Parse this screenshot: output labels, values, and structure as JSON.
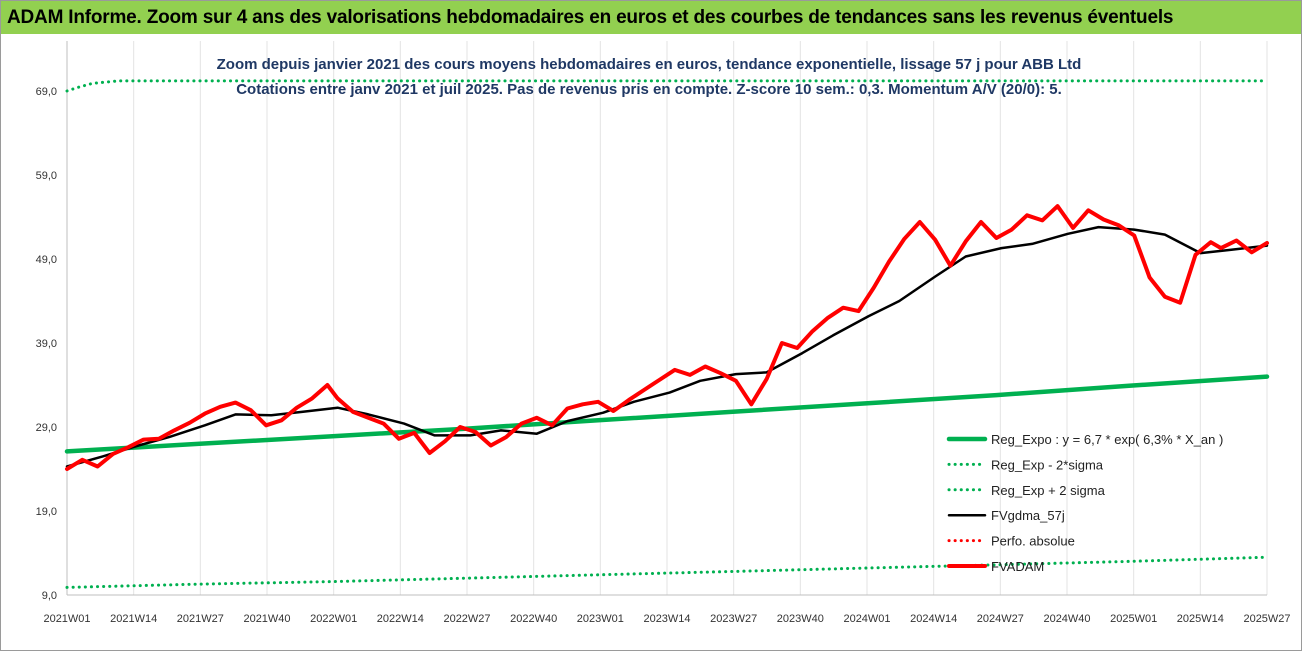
{
  "header": {
    "title": "ADAM Informe. Zoom sur 4 ans des valorisations hebdomadaires en euros et des courbes de tendances sans les revenus éventuels"
  },
  "chart_data": {
    "type": "line",
    "title": "Zoom depuis janvier 2021 des cours moyens hebdomadaires en euros, tendance exponentielle, lissage 57 j pour ABB Ltd",
    "subtitle": "Cotations entre janv 2021 et juil 2025. Pas de revenus pris en compte. Z-score 10 sem.: 0,3. Momentum A/V (20/0): 5.",
    "y_ticks": [
      "9,0",
      "19,0",
      "29,0",
      "39,0",
      "49,0",
      "59,0",
      "69,0"
    ],
    "y_tick_values": [
      9,
      19,
      29,
      39,
      49,
      59,
      69
    ],
    "ylim": [
      9,
      72
    ],
    "x_ticks": [
      "2021W01",
      "2021W14",
      "2021W27",
      "2021W40",
      "2022W01",
      "2022W14",
      "2022W27",
      "2022W40",
      "2023W01",
      "2023W14",
      "2023W27",
      "2023W40",
      "2024W01",
      "2024W14",
      "2024W27",
      "2024W40",
      "2025W01",
      "2025W14",
      "2025W27"
    ],
    "grid": "vertical",
    "legend_position": "bottom-right",
    "colors": {
      "reg": "#00b050",
      "band": "#00b050",
      "ma": "#000000",
      "perf": "#ff0000",
      "price": "#ff0000"
    },
    "series": [
      {
        "name": "Reg_Expo : y = 6,7 * exp( 6,3% *  X_an )",
        "style": "solid-thick",
        "color": "#00b050",
        "x": [
          0,
          26,
          52,
          78,
          104,
          130,
          156,
          182,
          208,
          235
        ],
        "values": [
          26.1,
          27.0,
          27.9,
          28.8,
          29.8,
          30.8,
          31.8,
          32.8,
          33.9,
          35.0
        ]
      },
      {
        "name": "Reg_Exp - 2*sigma",
        "style": "dotted",
        "color": "#00b050",
        "x": [
          0,
          26,
          52,
          78,
          104,
          130,
          156,
          182,
          208,
          235
        ],
        "values": [
          9.9,
          10.3,
          10.6,
          11.0,
          11.4,
          11.8,
          12.2,
          12.6,
          13.0,
          13.5
        ]
      },
      {
        "name": "Reg_Exp + 2 sigma",
        "style": "dotted",
        "color": "#00b050",
        "x": [
          0,
          2,
          5,
          10,
          235
        ],
        "values": [
          69.0,
          69.4,
          69.9,
          70.2,
          70.2
        ]
      },
      {
        "name": "FVgdma_57j",
        "style": "solid",
        "color": "#000000",
        "x": [
          0,
          7,
          14,
          20,
          27,
          33,
          40,
          46,
          53,
          59,
          66,
          72,
          79,
          85,
          92,
          98,
          105,
          111,
          118,
          124,
          131,
          137,
          144,
          150,
          157,
          163,
          170,
          176,
          183,
          189,
          196,
          202,
          209,
          215,
          222,
          228,
          235
        ],
        "values": [
          24.3,
          25.5,
          26.8,
          27.8,
          29.2,
          30.5,
          30.4,
          30.8,
          31.3,
          30.5,
          29.4,
          28.0,
          28.0,
          28.6,
          28.2,
          29.7,
          30.7,
          32.0,
          33.1,
          34.5,
          35.3,
          35.5,
          37.8,
          39.9,
          42.2,
          44.0,
          46.9,
          49.3,
          50.3,
          50.8,
          52.0,
          52.8,
          52.5,
          51.9,
          49.7,
          50.1,
          50.6
        ]
      },
      {
        "name": "Perfo. absolue",
        "style": "dotted",
        "color": "#ff0000",
        "x": [],
        "values": []
      },
      {
        "name": "FVADAM",
        "style": "solid-thick",
        "color": "#ff0000",
        "x": [
          0,
          3,
          6,
          9,
          12,
          15,
          18,
          21,
          24,
          27,
          30,
          33,
          36,
          39,
          42,
          45,
          48,
          51,
          53,
          56,
          59,
          62,
          65,
          68,
          71,
          74,
          77,
          80,
          83,
          86,
          89,
          92,
          95,
          98,
          101,
          104,
          107,
          110,
          113,
          116,
          119,
          122,
          125,
          128,
          131,
          134,
          137,
          140,
          143,
          146,
          149,
          152,
          155,
          158,
          161,
          164,
          167,
          170,
          173,
          176,
          179,
          182,
          185,
          188,
          191,
          194,
          197,
          200,
          203,
          206,
          209,
          212,
          215,
          218,
          221,
          224,
          226,
          229,
          232,
          235
        ],
        "values": [
          24.0,
          25.1,
          24.3,
          25.8,
          26.6,
          27.5,
          27.6,
          28.6,
          29.5,
          30.6,
          31.4,
          31.9,
          31.0,
          29.2,
          29.8,
          31.3,
          32.4,
          34.0,
          32.4,
          30.8,
          30.1,
          29.4,
          27.6,
          28.3,
          25.9,
          27.3,
          29.0,
          28.4,
          26.8,
          27.8,
          29.4,
          30.1,
          29.2,
          31.2,
          31.7,
          32.0,
          30.9,
          32.2,
          33.4,
          34.6,
          35.8,
          35.2,
          36.2,
          35.4,
          34.5,
          31.7,
          34.7,
          39.0,
          38.4,
          40.4,
          42.0,
          43.2,
          42.8,
          45.6,
          48.7,
          51.4,
          53.4,
          51.3,
          48.2,
          51.1,
          53.4,
          51.5,
          52.5,
          54.2,
          53.6,
          55.3,
          52.7,
          54.8,
          53.7,
          53.0,
          51.8,
          46.8,
          44.5,
          43.8,
          49.5,
          51.0,
          50.3,
          51.2,
          49.8,
          50.9
        ]
      }
    ]
  }
}
